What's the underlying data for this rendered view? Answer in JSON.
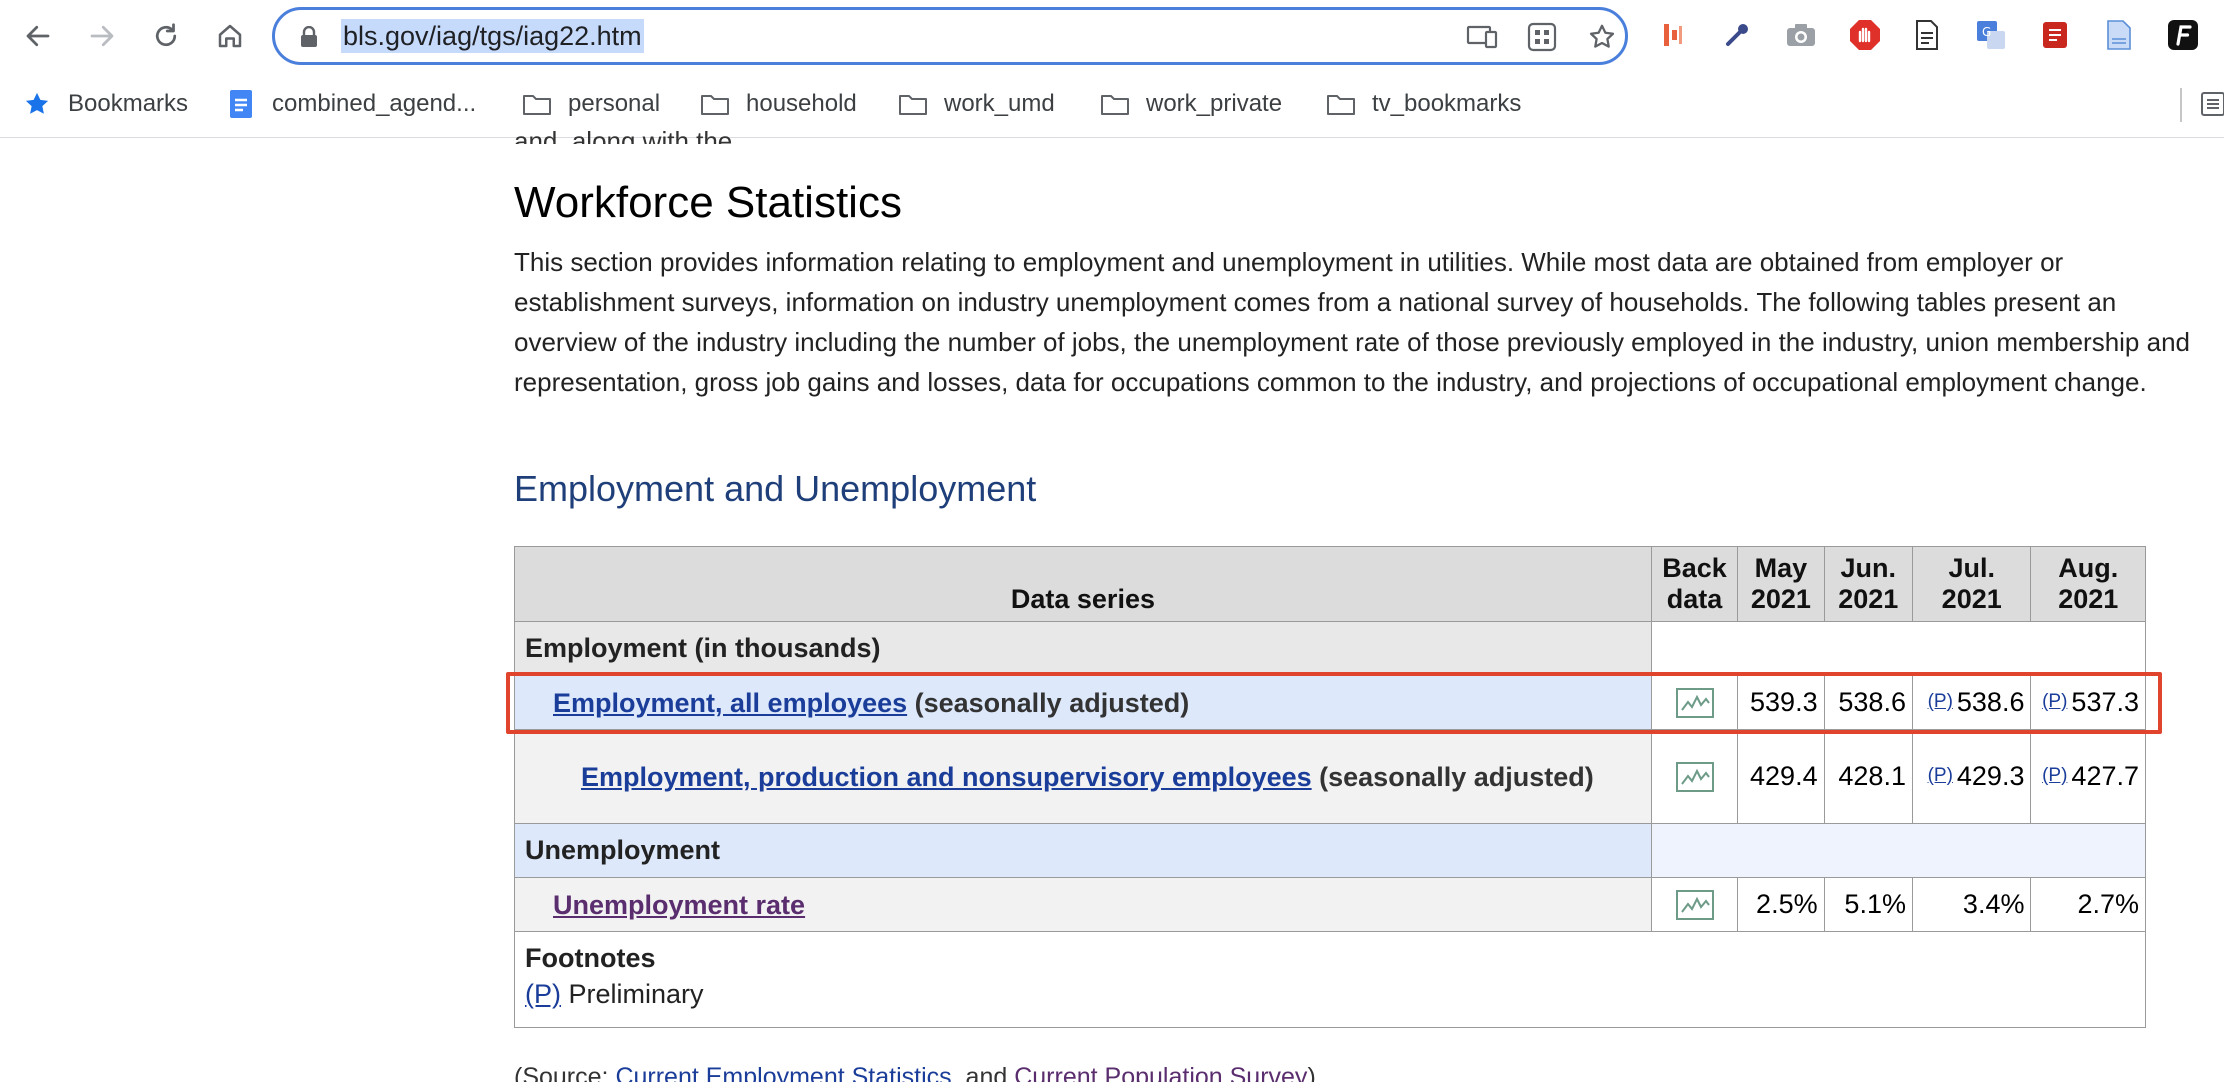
{
  "browser": {
    "url": "bls.gov/iag/tgs/iag22.htm",
    "bookmarks": [
      {
        "label": "Bookmarks",
        "icon": "star-icon"
      },
      {
        "label": "combined_agend...",
        "icon": "docs-icon"
      },
      {
        "label": "personal",
        "icon": "folder-icon"
      },
      {
        "label": "household",
        "icon": "folder-icon"
      },
      {
        "label": "work_umd",
        "icon": "folder-icon"
      },
      {
        "label": "work_private",
        "icon": "folder-icon"
      },
      {
        "label": "tv_bookmarks",
        "icon": "folder-icon"
      }
    ]
  },
  "page": {
    "cut_top_text": "and, along with the",
    "title": "Workforce Statistics",
    "intro": "This section provides information relating to employment and unemployment in utilities. While most data are obtained from employer or establishment surveys, information on industry unemployment comes from a national survey of households. The following tables present an overview of the industry including the number of jobs, the unemployment rate of those previously employed in the industry, union membership and representation, gross job gains and losses, data for occupations common to the industry, and projections of occupational employment change.",
    "section_title": "Employment and Unemployment",
    "table": {
      "headers": {
        "series": "Data series",
        "back_line1": "Back",
        "back_line2": "data",
        "may_line1": "May",
        "may_line2": "2021",
        "jun_line1": "Jun.",
        "jun_line2": "2021",
        "jul_line1": "Jul.",
        "jul_line2": "2021",
        "aug_line1": "Aug.",
        "aug_line2": "2021"
      },
      "group_employment": "Employment (in thousands)",
      "row_all": {
        "link": "Employment, all employees",
        "suffix": " (seasonally adjusted)",
        "may": "539.3",
        "jun": "538.6",
        "jul": "538.6",
        "aug": "537.3",
        "jul_mark": "(P)",
        "aug_mark": "(P)"
      },
      "row_prod": {
        "link": "Employment, production and nonsupervisory employees",
        "suffix": " (seasonally adjusted)",
        "may": "429.4",
        "jun": "428.1",
        "jul": "429.3",
        "aug": "427.7",
        "jul_mark": "(P)",
        "aug_mark": "(P)"
      },
      "group_unemployment": "Unemployment",
      "row_rate": {
        "link": "Unemployment rate",
        "may": "2.5%",
        "jun": "5.1%",
        "jul": "3.4%",
        "aug": "2.7%"
      },
      "footnotes_title": "Footnotes",
      "footnote_mark": "(P)",
      "footnote_text": " Preliminary"
    },
    "source": {
      "prefix": "(Source: ",
      "link1": "Current Employment Statistics",
      "middle": ", and ",
      "link2": "Current Population Survey",
      "suffix": ")"
    }
  },
  "colors": {
    "omnibox_border": "#4a7fdc",
    "heading_blue": "#1f3f7a",
    "link_blue": "#1a3d9a",
    "visited_link": "#5a2d6e",
    "highlight_box": "#e0442c"
  }
}
